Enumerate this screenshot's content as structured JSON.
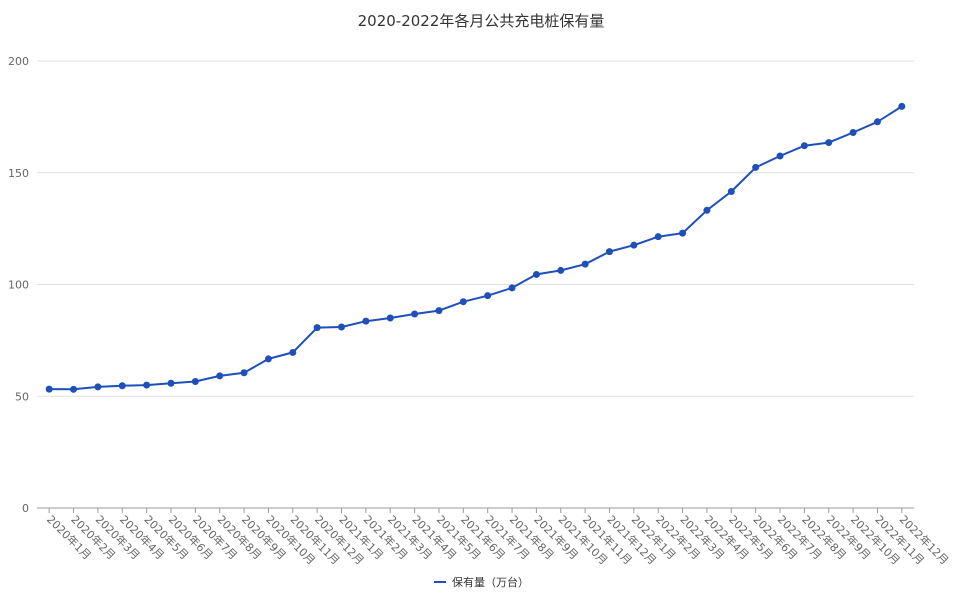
{
  "chart_data": {
    "type": "line",
    "title": "2020-2022年各月公共充电桩保有量",
    "xlabel": "",
    "ylabel": "",
    "ylim": [
      0,
      200
    ],
    "yticks": [
      0,
      50,
      100,
      150,
      200
    ],
    "grid": true,
    "legend_position": "bottom",
    "categories": [
      "2020年1月",
      "2020年2月",
      "2020年3月",
      "2020年4月",
      "2020年5月",
      "2020年6月",
      "2020年7月",
      "2020年8月",
      "2020年9月",
      "2020年10月",
      "2020年11月",
      "2020年12月",
      "2021年1月",
      "2021年2月",
      "2021年3月",
      "2021年4月",
      "2021年5月",
      "2021年6月",
      "2021年7月",
      "2021年8月",
      "2021年9月",
      "2021年10月",
      "2021年11月",
      "2021年12月",
      "2022年1月",
      "2022年2月",
      "2022年3月",
      "2022年4月",
      "2022年5月",
      "2022年6月",
      "2022年7月",
      "2022年8月",
      "2022年9月",
      "2022年10月",
      "2022年11月",
      "2022年12月"
    ],
    "series": [
      {
        "name": "保有量（万台）",
        "color": "#1f4fb8",
        "values": [
          53.2,
          53.1,
          54.2,
          54.7,
          55.0,
          55.8,
          56.6,
          59.1,
          60.5,
          66.7,
          69.6,
          80.7,
          81.0,
          83.6,
          85.0,
          86.8,
          88.3,
          92.3,
          95.0,
          98.5,
          104.5,
          106.3,
          109.1,
          114.7,
          117.6,
          121.4,
          123.0,
          133.2,
          141.6,
          152.4,
          157.5,
          162.1,
          163.5,
          168.0,
          172.8,
          179.7
        ]
      }
    ]
  }
}
